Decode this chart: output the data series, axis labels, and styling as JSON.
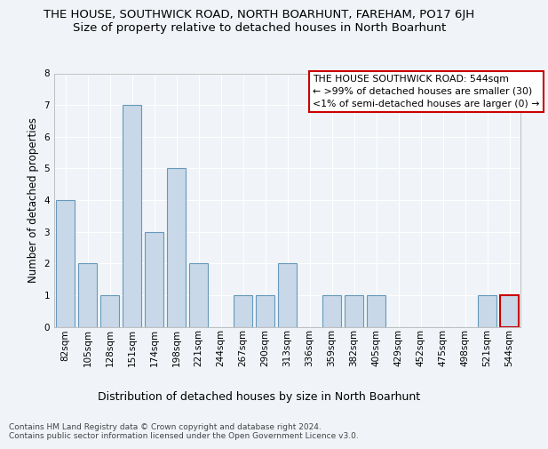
{
  "title": "THE HOUSE, SOUTHWICK ROAD, NORTH BOARHUNT, FAREHAM, PO17 6JH",
  "subtitle": "Size of property relative to detached houses in North Boarhunt",
  "xlabel": "Distribution of detached houses by size in North Boarhunt",
  "ylabel": "Number of detached properties",
  "categories": [
    "82sqm",
    "105sqm",
    "128sqm",
    "151sqm",
    "174sqm",
    "198sqm",
    "221sqm",
    "244sqm",
    "267sqm",
    "290sqm",
    "313sqm",
    "336sqm",
    "359sqm",
    "382sqm",
    "405sqm",
    "429sqm",
    "452sqm",
    "475sqm",
    "498sqm",
    "521sqm",
    "544sqm"
  ],
  "values": [
    4,
    2,
    1,
    7,
    3,
    5,
    2,
    0,
    1,
    1,
    2,
    0,
    1,
    1,
    1,
    0,
    0,
    0,
    0,
    1,
    1
  ],
  "bar_color": "#c8d8e8",
  "bar_edge_color": "#6699bb",
  "highlight_index": 20,
  "highlight_color": "#c8d8e8",
  "highlight_edge_color": "#cc0000",
  "ylim": [
    0,
    8
  ],
  "yticks": [
    0,
    1,
    2,
    3,
    4,
    5,
    6,
    7,
    8
  ],
  "annotation_box_color": "#ffffff",
  "annotation_box_edge": "#cc0000",
  "annotation_text": "THE HOUSE SOUTHWICK ROAD: 544sqm\n← >99% of detached houses are smaller (30)\n<1% of semi-detached houses are larger (0) →",
  "footer": "Contains HM Land Registry data © Crown copyright and database right 2024.\nContains public sector information licensed under the Open Government Licence v3.0.",
  "background_color": "#f0f4f8",
  "grid_color": "#ffffff",
  "title_fontsize": 9.5,
  "subtitle_fontsize": 9.5,
  "xlabel_fontsize": 9,
  "ylabel_fontsize": 8.5,
  "tick_fontsize": 7.5,
  "annotation_fontsize": 7.8,
  "footer_fontsize": 6.5
}
